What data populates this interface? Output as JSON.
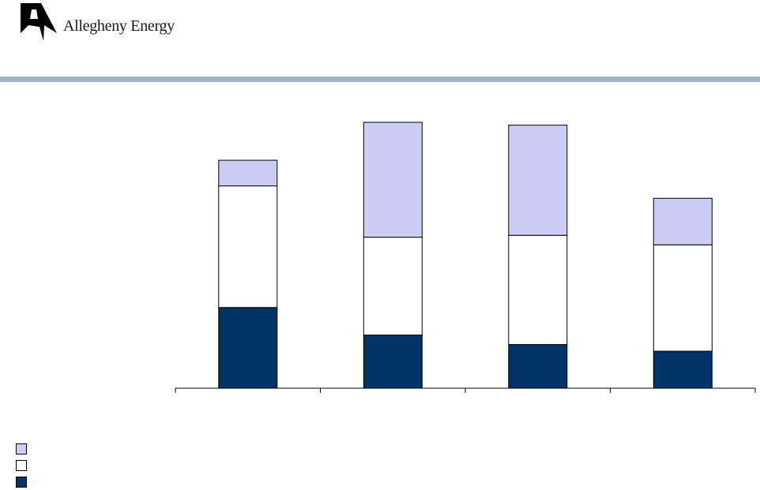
{
  "header": {
    "logo_text": "Allegheny Energy",
    "logo_icon": "allegheny-a-mark",
    "rule_color": "#9fb4c7"
  },
  "colors": {
    "top": "#ccccf5",
    "middle": "#ffffff",
    "bottom": "#003366",
    "outline": "#000000"
  },
  "chart_data": {
    "type": "bar",
    "stacked": true,
    "categories": [
      "",
      "",
      "",
      ""
    ],
    "series": [
      {
        "values": [
          85,
          56,
          46,
          39
        ],
        "color": "#003366"
      },
      {
        "values": [
          128,
          103,
          115,
          112
        ],
        "color": "#ffffff"
      },
      {
        "values": [
          27,
          121,
          116,
          49
        ],
        "color": "#ccccf5"
      }
    ],
    "ylim": [
      0,
      280
    ],
    "title": "",
    "xlabel": "",
    "ylabel": "",
    "grid": false,
    "legend_position": "bottom-left"
  },
  "legend": {
    "items": [
      {
        "color": "#ccccf5"
      },
      {
        "color": "#ffffff"
      },
      {
        "color": "#003366"
      }
    ]
  }
}
